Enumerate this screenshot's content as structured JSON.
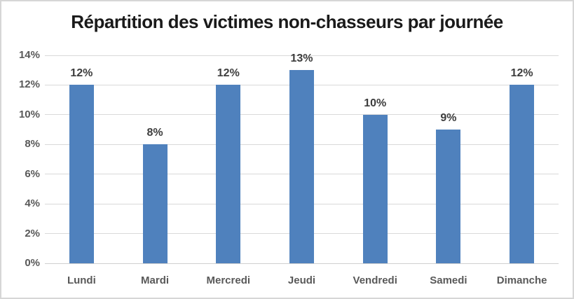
{
  "chart_data": {
    "type": "bar",
    "title": "Répartition des victimes non-chasseurs par journée",
    "categories": [
      "Lundi",
      "Mardi",
      "Mercredi",
      "Jeudi",
      "Vendredi",
      "Samedi",
      "Dimanche"
    ],
    "values": [
      12,
      8,
      12,
      13,
      10,
      9,
      12
    ],
    "data_labels": [
      "12%",
      "8%",
      "12%",
      "13%",
      "10%",
      "9%",
      "12%"
    ],
    "xlabel": "",
    "ylabel": "",
    "ylim": [
      0,
      14
    ],
    "ytick_step": 2,
    "ytick_labels": [
      "0%",
      "2%",
      "4%",
      "6%",
      "8%",
      "10%",
      "12%",
      "14%"
    ],
    "grid": true,
    "legend": false,
    "colors": {
      "bar": "#4F81BD",
      "gridline": "#D9D9D9",
      "axis_labels": "#595959",
      "data_labels": "#3D3D3D",
      "title": "#1A1A1A",
      "border": "#D6D6D6",
      "background": "#FFFFFF"
    }
  }
}
